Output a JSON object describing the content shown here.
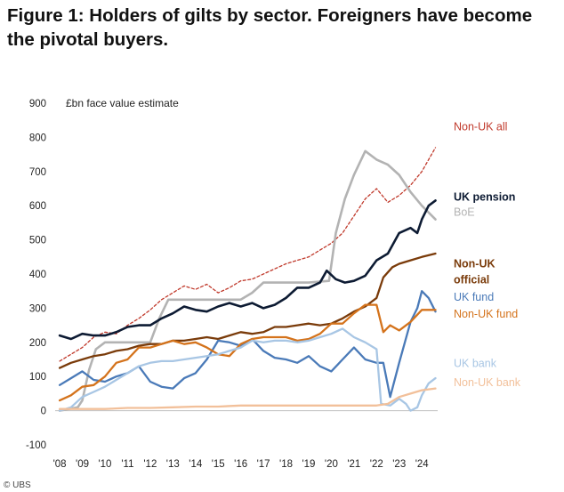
{
  "title": "Figure 1: Holders of gilts by sector. Foreigners have become the pivotal buyers.",
  "credit": "© UBS",
  "chart_data": {
    "type": "line",
    "unit_label": "£bn face value estimate",
    "ylim": [
      -100,
      900
    ],
    "yticks": [
      -100,
      0,
      100,
      200,
      300,
      400,
      500,
      600,
      700,
      800,
      900
    ],
    "xlim": [
      2007.8,
      2024.7
    ],
    "xticks": [
      {
        "value": 2008,
        "label": "'08"
      },
      {
        "value": 2009,
        "label": "'09"
      },
      {
        "value": 2010,
        "label": "'10"
      },
      {
        "value": 2011,
        "label": "'11"
      },
      {
        "value": 2012,
        "label": "'12"
      },
      {
        "value": 2013,
        "label": "'13"
      },
      {
        "value": 2014,
        "label": "'14"
      },
      {
        "value": 2015,
        "label": "'15"
      },
      {
        "value": 2016,
        "label": "'16"
      },
      {
        "value": 2017,
        "label": "'17"
      },
      {
        "value": 2018,
        "label": "'18"
      },
      {
        "value": 2019,
        "label": "'19"
      },
      {
        "value": 2020,
        "label": "'20"
      },
      {
        "value": 2021,
        "label": "'21"
      },
      {
        "value": 2022,
        "label": "'22"
      },
      {
        "value": 2023,
        "label": "'23"
      },
      {
        "value": 2024,
        "label": "'24"
      }
    ],
    "grid": false,
    "legend": "right",
    "series": [
      {
        "name": "Non-UK all",
        "color": "#c0392b",
        "dashed": true,
        "width": 1.3,
        "label_y": 820,
        "points": [
          [
            2008,
            145
          ],
          [
            2008.5,
            165
          ],
          [
            2009,
            185
          ],
          [
            2009.5,
            215
          ],
          [
            2010,
            230
          ],
          [
            2010.5,
            225
          ],
          [
            2011,
            250
          ],
          [
            2011.5,
            270
          ],
          [
            2012,
            295
          ],
          [
            2012.5,
            325
          ],
          [
            2013,
            345
          ],
          [
            2013.5,
            365
          ],
          [
            2014,
            355
          ],
          [
            2014.5,
            370
          ],
          [
            2015,
            345
          ],
          [
            2015.5,
            360
          ],
          [
            2016,
            380
          ],
          [
            2016.5,
            385
          ],
          [
            2017,
            400
          ],
          [
            2017.5,
            415
          ],
          [
            2018,
            430
          ],
          [
            2018.5,
            440
          ],
          [
            2019,
            450
          ],
          [
            2019.5,
            470
          ],
          [
            2020,
            490
          ],
          [
            2020.5,
            520
          ],
          [
            2021,
            570
          ],
          [
            2021.5,
            620
          ],
          [
            2022,
            650
          ],
          [
            2022.5,
            610
          ],
          [
            2023,
            630
          ],
          [
            2023.5,
            660
          ],
          [
            2024,
            700
          ],
          [
            2024.6,
            770
          ]
        ]
      },
      {
        "name": "BoE",
        "color": "#b3b3b3",
        "dashed": false,
        "width": 2.6,
        "label_y": 570,
        "points": [
          [
            2008,
            0
          ],
          [
            2008.8,
            10
          ],
          [
            2009,
            30
          ],
          [
            2009.3,
            120
          ],
          [
            2009.6,
            180
          ],
          [
            2010,
            200
          ],
          [
            2011,
            200
          ],
          [
            2012,
            200
          ],
          [
            2012.4,
            270
          ],
          [
            2012.8,
            325
          ],
          [
            2014,
            325
          ],
          [
            2015,
            325
          ],
          [
            2016,
            325
          ],
          [
            2016.5,
            345
          ],
          [
            2017,
            375
          ],
          [
            2018,
            375
          ],
          [
            2019,
            375
          ],
          [
            2019.9,
            380
          ],
          [
            2020.2,
            520
          ],
          [
            2020.6,
            620
          ],
          [
            2021,
            690
          ],
          [
            2021.5,
            760
          ],
          [
            2022,
            735
          ],
          [
            2022.5,
            720
          ],
          [
            2023,
            690
          ],
          [
            2023.5,
            640
          ],
          [
            2024,
            600
          ],
          [
            2024.6,
            560
          ]
        ]
      },
      {
        "name": "UK pension",
        "color": "#0d1b33",
        "dashed": false,
        "width": 2.6,
        "label_y": 615,
        "points": [
          [
            2008,
            220
          ],
          [
            2008.5,
            210
          ],
          [
            2009,
            225
          ],
          [
            2009.5,
            220
          ],
          [
            2010,
            220
          ],
          [
            2010.5,
            230
          ],
          [
            2011,
            245
          ],
          [
            2011.5,
            250
          ],
          [
            2012,
            250
          ],
          [
            2012.5,
            270
          ],
          [
            2013,
            285
          ],
          [
            2013.5,
            305
          ],
          [
            2014,
            295
          ],
          [
            2014.5,
            290
          ],
          [
            2015,
            305
          ],
          [
            2015.5,
            315
          ],
          [
            2016,
            305
          ],
          [
            2016.5,
            315
          ],
          [
            2017,
            300
          ],
          [
            2017.5,
            310
          ],
          [
            2018,
            330
          ],
          [
            2018.5,
            360
          ],
          [
            2019,
            360
          ],
          [
            2019.5,
            375
          ],
          [
            2019.8,
            410
          ],
          [
            2020.2,
            385
          ],
          [
            2020.6,
            375
          ],
          [
            2021,
            380
          ],
          [
            2021.5,
            395
          ],
          [
            2022,
            440
          ],
          [
            2022.5,
            460
          ],
          [
            2023,
            520
          ],
          [
            2023.5,
            535
          ],
          [
            2023.8,
            520
          ],
          [
            2024,
            560
          ],
          [
            2024.3,
            600
          ],
          [
            2024.6,
            615
          ]
        ]
      },
      {
        "name": "Non-UK official",
        "color": "#7a3b0a",
        "dashed": false,
        "width": 2.3,
        "label_y": 420,
        "points": [
          [
            2008,
            125
          ],
          [
            2008.5,
            140
          ],
          [
            2009,
            150
          ],
          [
            2009.5,
            160
          ],
          [
            2010,
            165
          ],
          [
            2010.5,
            175
          ],
          [
            2011,
            180
          ],
          [
            2011.5,
            190
          ],
          [
            2012,
            195
          ],
          [
            2012.5,
            195
          ],
          [
            2013,
            205
          ],
          [
            2013.5,
            205
          ],
          [
            2014,
            210
          ],
          [
            2014.5,
            215
          ],
          [
            2015,
            210
          ],
          [
            2015.5,
            220
          ],
          [
            2016,
            230
          ],
          [
            2016.5,
            225
          ],
          [
            2017,
            230
          ],
          [
            2017.5,
            245
          ],
          [
            2018,
            245
          ],
          [
            2018.5,
            250
          ],
          [
            2019,
            255
          ],
          [
            2019.5,
            250
          ],
          [
            2020,
            255
          ],
          [
            2020.5,
            270
          ],
          [
            2021,
            290
          ],
          [
            2021.5,
            305
          ],
          [
            2022,
            330
          ],
          [
            2022.3,
            390
          ],
          [
            2022.7,
            420
          ],
          [
            2023,
            430
          ],
          [
            2023.5,
            440
          ],
          [
            2024,
            450
          ],
          [
            2024.6,
            460
          ]
        ]
      },
      {
        "name": "UK fund",
        "color": "#4a7ab8",
        "dashed": false,
        "width": 2.3,
        "label_y": 322,
        "points": [
          [
            2008,
            75
          ],
          [
            2008.5,
            95
          ],
          [
            2009,
            115
          ],
          [
            2009.5,
            90
          ],
          [
            2010,
            85
          ],
          [
            2010.5,
            100
          ],
          [
            2011,
            110
          ],
          [
            2011.5,
            130
          ],
          [
            2012,
            85
          ],
          [
            2012.5,
            70
          ],
          [
            2013,
            65
          ],
          [
            2013.5,
            95
          ],
          [
            2014,
            110
          ],
          [
            2014.5,
            150
          ],
          [
            2015,
            205
          ],
          [
            2015.5,
            200
          ],
          [
            2016,
            190
          ],
          [
            2016.5,
            210
          ],
          [
            2017,
            175
          ],
          [
            2017.5,
            155
          ],
          [
            2018,
            150
          ],
          [
            2018.5,
            140
          ],
          [
            2019,
            160
          ],
          [
            2019.5,
            130
          ],
          [
            2020,
            115
          ],
          [
            2020.5,
            150
          ],
          [
            2021,
            185
          ],
          [
            2021.5,
            150
          ],
          [
            2022,
            140
          ],
          [
            2022.3,
            140
          ],
          [
            2022.6,
            40
          ],
          [
            2023,
            140
          ],
          [
            2023.5,
            260
          ],
          [
            2023.8,
            300
          ],
          [
            2024,
            350
          ],
          [
            2024.3,
            330
          ],
          [
            2024.6,
            290
          ]
        ]
      },
      {
        "name": "Non-UK fund",
        "color": "#d4731c",
        "dashed": false,
        "width": 2.3,
        "label_y": 272,
        "points": [
          [
            2008,
            30
          ],
          [
            2008.5,
            45
          ],
          [
            2009,
            70
          ],
          [
            2009.5,
            75
          ],
          [
            2010,
            100
          ],
          [
            2010.5,
            140
          ],
          [
            2011,
            150
          ],
          [
            2011.5,
            185
          ],
          [
            2012,
            185
          ],
          [
            2012.5,
            195
          ],
          [
            2013,
            205
          ],
          [
            2013.5,
            195
          ],
          [
            2014,
            200
          ],
          [
            2014.5,
            185
          ],
          [
            2015,
            165
          ],
          [
            2015.5,
            160
          ],
          [
            2016,
            195
          ],
          [
            2016.5,
            210
          ],
          [
            2017,
            215
          ],
          [
            2017.5,
            215
          ],
          [
            2018,
            215
          ],
          [
            2018.5,
            205
          ],
          [
            2019,
            210
          ],
          [
            2019.5,
            225
          ],
          [
            2020,
            255
          ],
          [
            2020.5,
            255
          ],
          [
            2021,
            285
          ],
          [
            2021.5,
            310
          ],
          [
            2022,
            310
          ],
          [
            2022.3,
            230
          ],
          [
            2022.6,
            250
          ],
          [
            2023,
            235
          ],
          [
            2023.5,
            260
          ],
          [
            2024,
            295
          ],
          [
            2024.6,
            295
          ]
        ]
      },
      {
        "name": "UK bank",
        "color": "#a8c6e4",
        "dashed": false,
        "width": 2.3,
        "label_y": 128,
        "points": [
          [
            2008,
            0
          ],
          [
            2008.5,
            10
          ],
          [
            2009,
            40
          ],
          [
            2009.5,
            55
          ],
          [
            2010,
            70
          ],
          [
            2010.5,
            90
          ],
          [
            2011,
            110
          ],
          [
            2011.5,
            130
          ],
          [
            2012,
            140
          ],
          [
            2012.5,
            145
          ],
          [
            2013,
            145
          ],
          [
            2013.5,
            150
          ],
          [
            2014,
            155
          ],
          [
            2014.5,
            160
          ],
          [
            2015,
            165
          ],
          [
            2015.5,
            175
          ],
          [
            2016,
            185
          ],
          [
            2016.5,
            205
          ],
          [
            2017,
            200
          ],
          [
            2017.5,
            205
          ],
          [
            2018,
            205
          ],
          [
            2018.5,
            200
          ],
          [
            2019,
            205
          ],
          [
            2019.5,
            215
          ],
          [
            2020,
            225
          ],
          [
            2020.5,
            240
          ],
          [
            2021,
            215
          ],
          [
            2021.5,
            200
          ],
          [
            2022,
            180
          ],
          [
            2022.2,
            20
          ],
          [
            2022.6,
            15
          ],
          [
            2023,
            35
          ],
          [
            2023.3,
            20
          ],
          [
            2023.5,
            0
          ],
          [
            2023.8,
            10
          ],
          [
            2024,
            45
          ],
          [
            2024.3,
            80
          ],
          [
            2024.6,
            95
          ]
        ]
      },
      {
        "name": "Non-UK bank",
        "color": "#f2c09a",
        "dashed": false,
        "width": 2.3,
        "label_y": 72,
        "points": [
          [
            2008,
            5
          ],
          [
            2009,
            5
          ],
          [
            2010,
            5
          ],
          [
            2011,
            8
          ],
          [
            2012,
            8
          ],
          [
            2013,
            10
          ],
          [
            2014,
            12
          ],
          [
            2015,
            12
          ],
          [
            2016,
            15
          ],
          [
            2017,
            15
          ],
          [
            2018,
            15
          ],
          [
            2019,
            15
          ],
          [
            2020,
            15
          ],
          [
            2021,
            15
          ],
          [
            2022,
            15
          ],
          [
            2022.5,
            20
          ],
          [
            2023,
            40
          ],
          [
            2023.5,
            50
          ],
          [
            2024,
            60
          ],
          [
            2024.6,
            65
          ]
        ]
      }
    ]
  }
}
